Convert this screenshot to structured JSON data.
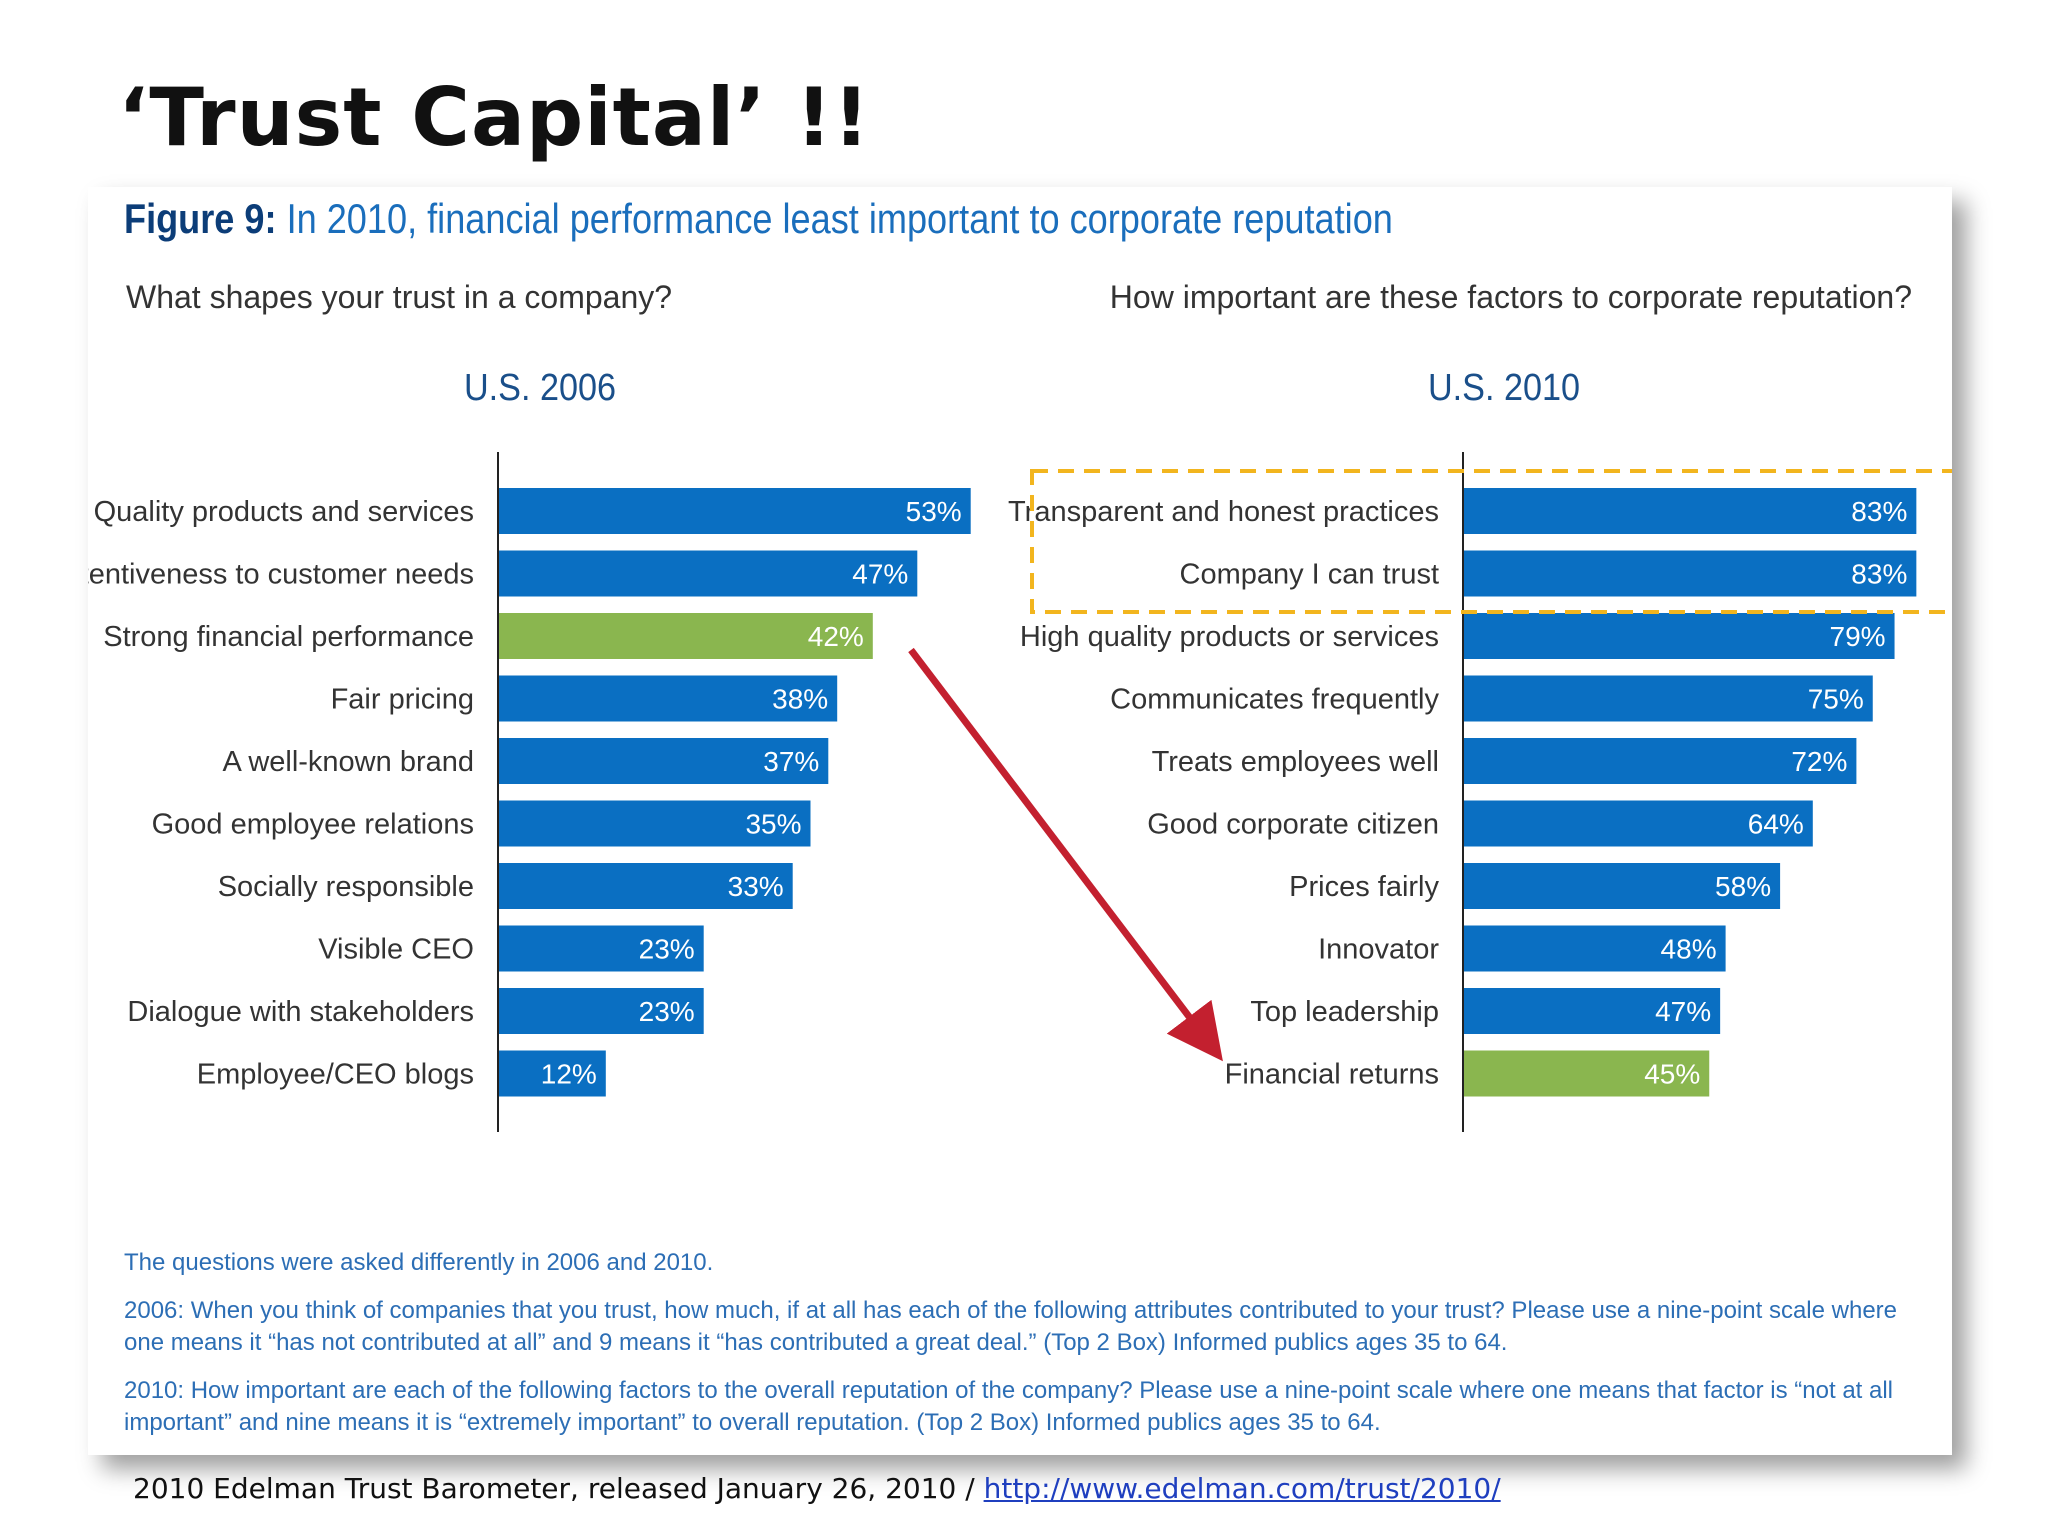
{
  "slide": {
    "title": "‘Trust Capital’ !!",
    "source_text": "2010 Edelman Trust Barometer, released January 26, 2010 / ",
    "source_link": "http://www.edelman.com/trust/2010/"
  },
  "figure": {
    "label": "Figure 9:",
    "headline": " In 2010, financial performance least important to corporate reputation",
    "left_question": "What shapes your trust in a company?",
    "right_question": "How important are these factors to corporate reputation?",
    "notes": [
      "The questions were asked differently in 2006 and 2010.",
      "2006: When you think of companies that you trust, how much, if at all has each of the following attributes contributed to your trust? Please use a nine-point scale where one means it “has not contributed at all” and 9 means it “has contributed a great deal.” (Top 2 Box) Informed publics ages 35 to 64.",
      "2010: How important are each of the following factors to the overall reputation of the company? Please use a nine-point scale where one means that factor is “not at all important” and nine means it is “extremely important” to overall reputation. (Top 2 Box) Informed publics ages 35 to 64."
    ]
  },
  "colors": {
    "bar": "#0a6fc2",
    "highlight": "#8ab64f",
    "arrow": "#c3202f",
    "dashed_box": "#f2b51e"
  },
  "chart_data": [
    {
      "type": "bar",
      "orientation": "horizontal",
      "title": "U.S. 2006",
      "categories": [
        "Quality products and services",
        "Attentiveness to customer needs",
        "Strong financial performance",
        "Fair pricing",
        "A well-known brand",
        "Good employee relations",
        "Socially responsible",
        "Visible CEO",
        "Dialogue with stakeholders",
        "Employee/CEO blogs"
      ],
      "values": [
        53,
        47,
        42,
        38,
        37,
        35,
        33,
        23,
        23,
        12
      ],
      "value_labels": [
        "53%",
        "47%",
        "42%",
        "38%",
        "37%",
        "35%",
        "33%",
        "23%",
        "23%",
        "12%"
      ],
      "highlight": [
        "Strong financial performance"
      ],
      "unit": "%"
    },
    {
      "type": "bar",
      "orientation": "horizontal",
      "title": "U.S. 2010",
      "categories": [
        "Transparent and honest practices",
        "Company I can trust",
        "High quality products or services",
        "Communicates frequently",
        "Treats employees well",
        "Good corporate citizen",
        "Prices fairly",
        "Innovator",
        "Top leadership",
        "Financial returns"
      ],
      "values": [
        83,
        83,
        79,
        75,
        72,
        64,
        58,
        48,
        47,
        45
      ],
      "value_labels": [
        "83%",
        "83%",
        "79%",
        "75%",
        "72%",
        "64%",
        "58%",
        "48%",
        "47%",
        "45%"
      ],
      "highlight": [
        "Financial returns"
      ],
      "boxed": [
        "Transparent and honest practices",
        "Company I can trust"
      ],
      "unit": "%"
    }
  ]
}
